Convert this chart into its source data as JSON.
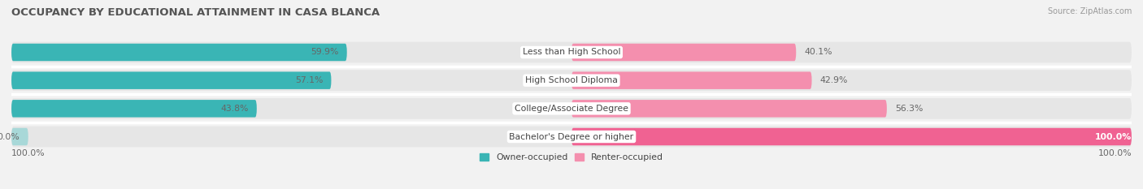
{
  "title": "OCCUPANCY BY EDUCATIONAL ATTAINMENT IN CASA BLANCA",
  "source": "Source: ZipAtlas.com",
  "categories": [
    "Less than High School",
    "High School Diploma",
    "College/Associate Degree",
    "Bachelor's Degree or higher"
  ],
  "owner_values": [
    59.9,
    57.1,
    43.8,
    0.0
  ],
  "renter_values": [
    40.1,
    42.9,
    56.3,
    100.0
  ],
  "owner_color": "#3ab5b5",
  "renter_color_strong": "#f06292",
  "renter_color_light": "#f48fae",
  "owner_color_light": "#a8d8d8",
  "bg_color": "#f2f2f2",
  "row_bg_color": "#e6e6e6",
  "separator_color": "#ffffff",
  "title_color": "#555555",
  "value_color": "#666666",
  "label_color": "#444444",
  "source_color": "#999999",
  "title_fontsize": 9.5,
  "label_fontsize": 7.8,
  "source_fontsize": 7.0,
  "bar_height": 0.62,
  "legend_owner": "Owner-occupied",
  "legend_renter": "Renter-occupied",
  "axis_label_left": "100.0%",
  "axis_label_right": "100.0%"
}
